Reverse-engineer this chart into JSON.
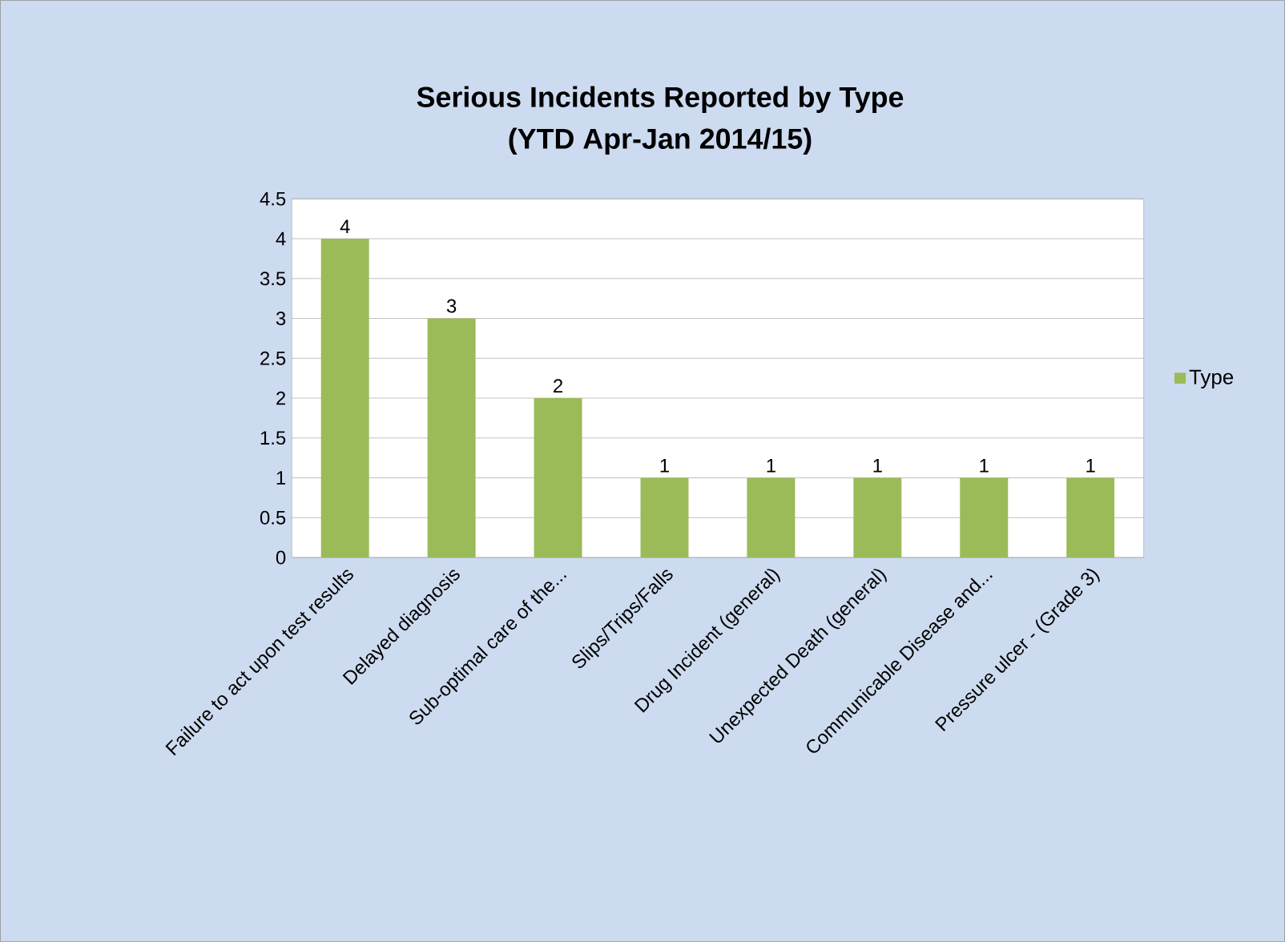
{
  "chart_data": {
    "type": "bar",
    "title": "Serious Incidents Reported by Type",
    "subtitle": "(YTD Apr-Jan 2014/15)",
    "categories": [
      "Failure to act upon test results",
      "Delayed diagnosis",
      "Sub-optimal care of the...",
      "Slips/Trips/Falls",
      "Drug Incident (general)",
      "Unexpected Death (general)",
      "Communicable Disease and...",
      "Pressure ulcer - (Grade 3)"
    ],
    "series": [
      {
        "name": "Type",
        "color": "#9bbb59",
        "values": [
          4,
          3,
          2,
          1,
          1,
          1,
          1,
          1
        ]
      }
    ],
    "ylim": [
      0,
      4.5
    ],
    "yticks": [
      0,
      0.5,
      1,
      1.5,
      2,
      2.5,
      3,
      3.5,
      4,
      4.5
    ],
    "grid": "y",
    "legend": "right",
    "data_labels": true
  }
}
